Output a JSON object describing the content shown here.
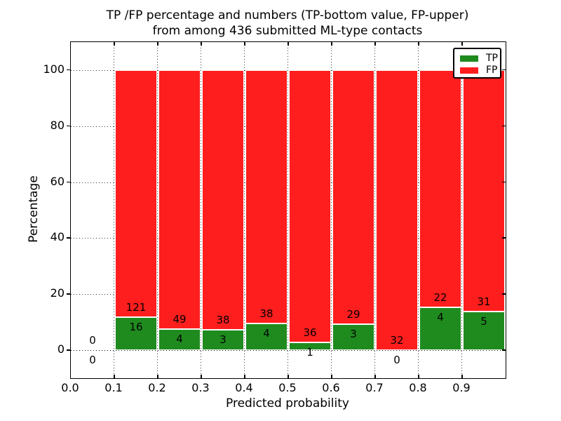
{
  "figure": {
    "title_line1": "TP /FP percentage and numbers (TP-bottom value, FP-upper)",
    "title_line2": "from among 436 submitted ML-type contacts"
  },
  "chart_data": {
    "type": "bar",
    "stacked": true,
    "normalized": "each bin scaled to 100%",
    "title": "TP /FP percentage and numbers (TP-bottom value, FP-upper) from among 436 submitted ML-type contacts",
    "xlabel": "Predicted probability",
    "ylabel": "Percentage",
    "xlim": [
      0.0,
      1.0
    ],
    "ylim": [
      -10,
      110
    ],
    "bin_width": 0.1,
    "grid": "dotted",
    "legend_position": "upper right",
    "total_contacts": 436,
    "xticks": [
      "0.0",
      "0.1",
      "0.2",
      "0.3",
      "0.4",
      "0.5",
      "0.6",
      "0.7",
      "0.8",
      "0.9"
    ],
    "yticks": [
      0,
      20,
      40,
      60,
      80,
      100
    ],
    "bin_starts": [
      0.0,
      0.1,
      0.2,
      0.3,
      0.4,
      0.5,
      0.6,
      0.7,
      0.8,
      0.9
    ],
    "series": [
      {
        "name": "TP",
        "color": "#1f8b1f",
        "counts": [
          0,
          16,
          4,
          3,
          4,
          1,
          3,
          0,
          4,
          5
        ]
      },
      {
        "name": "FP",
        "color": "#ff1e1e",
        "counts": [
          0,
          121,
          49,
          38,
          38,
          36,
          29,
          32,
          22,
          31
        ]
      }
    ],
    "legend": [
      {
        "label": "TP",
        "color": "#1f8b1f"
      },
      {
        "label": "FP",
        "color": "#ff1e1e"
      }
    ]
  }
}
